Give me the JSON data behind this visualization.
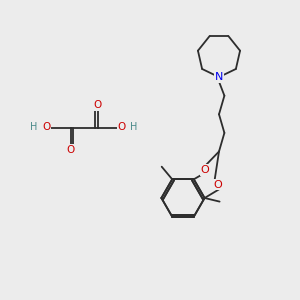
{
  "background_color": "#ececec",
  "bond_color": "#2d2d2d",
  "N_color": "#0000ee",
  "O_color": "#cc0000",
  "H_color": "#4a8a8a",
  "fig_width": 3.0,
  "fig_height": 3.0,
  "dpi": 100,
  "xlim": [
    0,
    10
  ],
  "ylim": [
    0,
    10
  ]
}
